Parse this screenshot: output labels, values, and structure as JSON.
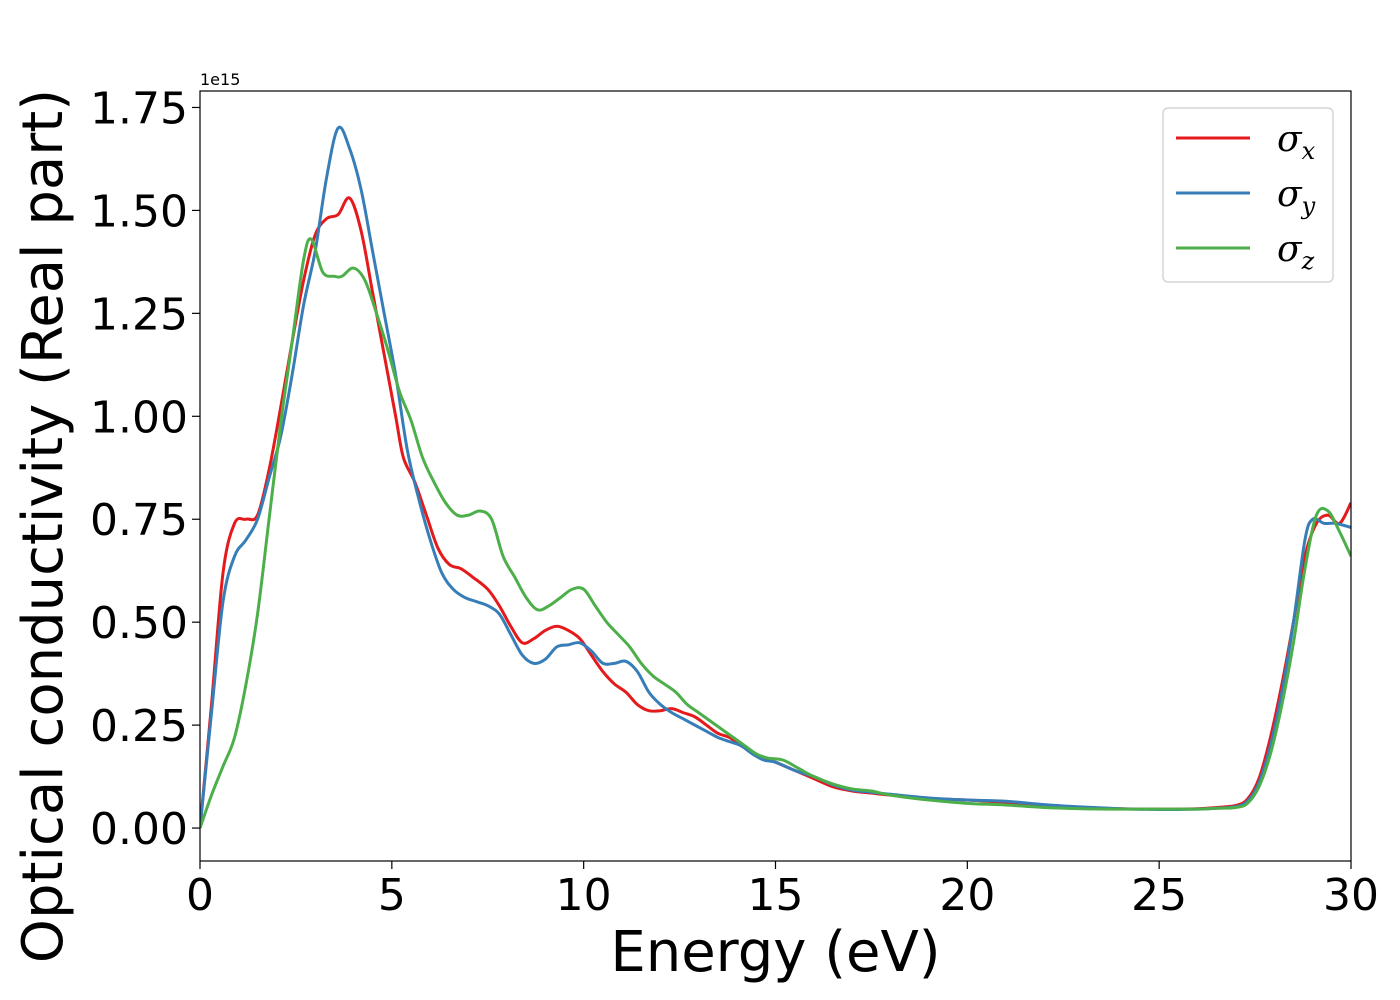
{
  "chart_data": {
    "type": "line",
    "xlabel": "Energy (eV)",
    "ylabel": "Optical conductivity (Real part)",
    "y_offset_label": "1e15",
    "xlim": [
      0,
      30
    ],
    "ylim": [
      -0.08,
      1.79
    ],
    "x_ticks": [
      0,
      5,
      10,
      15,
      20,
      25,
      30
    ],
    "x_tick_labels": [
      "0",
      "5",
      "10",
      "15",
      "20",
      "25",
      "30"
    ],
    "y_ticks": [
      0.0,
      0.25,
      0.5,
      0.75,
      1.0,
      1.25,
      1.5,
      1.75
    ],
    "y_tick_labels": [
      "0.00",
      "0.25",
      "0.50",
      "0.75",
      "1.00",
      "1.25",
      "1.50",
      "1.75"
    ],
    "grid": false,
    "legend_position": "top-right",
    "series": [
      {
        "name": "σx",
        "symbol": "σ",
        "subscript": "x",
        "color": "#e41a1c",
        "points": [
          [
            0,
            0
          ],
          [
            0.3,
            0.3
          ],
          [
            0.6,
            0.62
          ],
          [
            0.9,
            0.74
          ],
          [
            1.2,
            0.75
          ],
          [
            1.5,
            0.76
          ],
          [
            1.8,
            0.87
          ],
          [
            2.1,
            1.02
          ],
          [
            2.4,
            1.18
          ],
          [
            2.7,
            1.33
          ],
          [
            3.0,
            1.44
          ],
          [
            3.3,
            1.48
          ],
          [
            3.6,
            1.49
          ],
          [
            3.9,
            1.53
          ],
          [
            4.2,
            1.45
          ],
          [
            4.5,
            1.3
          ],
          [
            4.8,
            1.15
          ],
          [
            5.1,
            1.0
          ],
          [
            5.3,
            0.9
          ],
          [
            5.6,
            0.84
          ],
          [
            5.9,
            0.76
          ],
          [
            6.2,
            0.68
          ],
          [
            6.5,
            0.64
          ],
          [
            6.8,
            0.63
          ],
          [
            7.1,
            0.61
          ],
          [
            7.5,
            0.58
          ],
          [
            7.8,
            0.54
          ],
          [
            8.1,
            0.49
          ],
          [
            8.4,
            0.45
          ],
          [
            8.7,
            0.46
          ],
          [
            9.0,
            0.48
          ],
          [
            9.3,
            0.49
          ],
          [
            9.6,
            0.48
          ],
          [
            9.9,
            0.46
          ],
          [
            10.2,
            0.42
          ],
          [
            10.5,
            0.38
          ],
          [
            10.8,
            0.35
          ],
          [
            11.1,
            0.33
          ],
          [
            11.4,
            0.3
          ],
          [
            11.7,
            0.285
          ],
          [
            12.0,
            0.285
          ],
          [
            12.3,
            0.29
          ],
          [
            12.6,
            0.28
          ],
          [
            12.9,
            0.27
          ],
          [
            13.2,
            0.25
          ],
          [
            13.5,
            0.23
          ],
          [
            13.8,
            0.22
          ],
          [
            14.1,
            0.2
          ],
          [
            14.4,
            0.185
          ],
          [
            14.7,
            0.17
          ],
          [
            15.0,
            0.16
          ],
          [
            15.5,
            0.14
          ],
          [
            16.0,
            0.12
          ],
          [
            16.5,
            0.1
          ],
          [
            17.0,
            0.09
          ],
          [
            17.5,
            0.085
          ],
          [
            18.0,
            0.08
          ],
          [
            19.0,
            0.072
          ],
          [
            20.0,
            0.068
          ],
          [
            21.0,
            0.062
          ],
          [
            22.0,
            0.055
          ],
          [
            23.0,
            0.05
          ],
          [
            24.0,
            0.047
          ],
          [
            25.0,
            0.046
          ],
          [
            26.0,
            0.047
          ],
          [
            26.5,
            0.05
          ],
          [
            27.0,
            0.055
          ],
          [
            27.3,
            0.07
          ],
          [
            27.6,
            0.12
          ],
          [
            27.9,
            0.22
          ],
          [
            28.2,
            0.35
          ],
          [
            28.5,
            0.5
          ],
          [
            28.8,
            0.66
          ],
          [
            29.1,
            0.74
          ],
          [
            29.4,
            0.76
          ],
          [
            29.7,
            0.74
          ],
          [
            30.0,
            0.79
          ]
        ]
      },
      {
        "name": "σy",
        "symbol": "σ",
        "subscript": "y",
        "color": "#377eb8",
        "points": [
          [
            0,
            0
          ],
          [
            0.3,
            0.28
          ],
          [
            0.6,
            0.55
          ],
          [
            0.9,
            0.66
          ],
          [
            1.2,
            0.7
          ],
          [
            1.5,
            0.75
          ],
          [
            1.8,
            0.85
          ],
          [
            2.1,
            0.95
          ],
          [
            2.4,
            1.1
          ],
          [
            2.7,
            1.27
          ],
          [
            3.0,
            1.4
          ],
          [
            3.3,
            1.58
          ],
          [
            3.6,
            1.7
          ],
          [
            3.9,
            1.65
          ],
          [
            4.2,
            1.55
          ],
          [
            4.5,
            1.4
          ],
          [
            4.8,
            1.25
          ],
          [
            5.1,
            1.1
          ],
          [
            5.4,
            0.92
          ],
          [
            5.7,
            0.8
          ],
          [
            6.0,
            0.7
          ],
          [
            6.3,
            0.62
          ],
          [
            6.6,
            0.58
          ],
          [
            6.9,
            0.56
          ],
          [
            7.2,
            0.55
          ],
          [
            7.5,
            0.54
          ],
          [
            7.8,
            0.52
          ],
          [
            8.1,
            0.47
          ],
          [
            8.4,
            0.42
          ],
          [
            8.7,
            0.4
          ],
          [
            9.0,
            0.41
          ],
          [
            9.3,
            0.44
          ],
          [
            9.6,
            0.445
          ],
          [
            9.9,
            0.45
          ],
          [
            10.2,
            0.43
          ],
          [
            10.5,
            0.4
          ],
          [
            10.8,
            0.4
          ],
          [
            11.1,
            0.405
          ],
          [
            11.4,
            0.38
          ],
          [
            11.7,
            0.33
          ],
          [
            12.0,
            0.3
          ],
          [
            12.3,
            0.28
          ],
          [
            12.6,
            0.265
          ],
          [
            12.9,
            0.25
          ],
          [
            13.2,
            0.235
          ],
          [
            13.5,
            0.22
          ],
          [
            13.8,
            0.21
          ],
          [
            14.1,
            0.2
          ],
          [
            14.4,
            0.18
          ],
          [
            14.7,
            0.165
          ],
          [
            15.0,
            0.16
          ],
          [
            15.5,
            0.14
          ],
          [
            16.0,
            0.125
          ],
          [
            16.5,
            0.105
          ],
          [
            17.0,
            0.092
          ],
          [
            17.5,
            0.087
          ],
          [
            18.0,
            0.082
          ],
          [
            19.0,
            0.073
          ],
          [
            20.0,
            0.068
          ],
          [
            21.0,
            0.065
          ],
          [
            22.0,
            0.057
          ],
          [
            23.0,
            0.051
          ],
          [
            24.0,
            0.047
          ],
          [
            25.0,
            0.045
          ],
          [
            26.0,
            0.046
          ],
          [
            26.5,
            0.048
          ],
          [
            27.0,
            0.052
          ],
          [
            27.3,
            0.065
          ],
          [
            27.6,
            0.11
          ],
          [
            27.9,
            0.2
          ],
          [
            28.2,
            0.33
          ],
          [
            28.5,
            0.5
          ],
          [
            28.8,
            0.7
          ],
          [
            29.0,
            0.75
          ],
          [
            29.3,
            0.74
          ],
          [
            29.6,
            0.74
          ],
          [
            30.0,
            0.73
          ]
        ]
      },
      {
        "name": "σz",
        "symbol": "σ",
        "subscript": "z",
        "color": "#4daf4a",
        "points": [
          [
            0,
            0
          ],
          [
            0.3,
            0.08
          ],
          [
            0.6,
            0.15
          ],
          [
            0.9,
            0.22
          ],
          [
            1.2,
            0.35
          ],
          [
            1.5,
            0.52
          ],
          [
            1.8,
            0.75
          ],
          [
            2.1,
            0.98
          ],
          [
            2.4,
            1.18
          ],
          [
            2.7,
            1.38
          ],
          [
            2.9,
            1.43
          ],
          [
            3.2,
            1.35
          ],
          [
            3.5,
            1.34
          ],
          [
            3.7,
            1.34
          ],
          [
            4.0,
            1.36
          ],
          [
            4.3,
            1.33
          ],
          [
            4.6,
            1.25
          ],
          [
            4.9,
            1.16
          ],
          [
            5.2,
            1.06
          ],
          [
            5.5,
            0.99
          ],
          [
            5.8,
            0.9
          ],
          [
            6.1,
            0.84
          ],
          [
            6.4,
            0.79
          ],
          [
            6.7,
            0.76
          ],
          [
            7.0,
            0.76
          ],
          [
            7.3,
            0.77
          ],
          [
            7.6,
            0.75
          ],
          [
            7.9,
            0.66
          ],
          [
            8.2,
            0.61
          ],
          [
            8.5,
            0.56
          ],
          [
            8.8,
            0.53
          ],
          [
            9.1,
            0.54
          ],
          [
            9.4,
            0.56
          ],
          [
            9.7,
            0.58
          ],
          [
            10.0,
            0.58
          ],
          [
            10.3,
            0.54
          ],
          [
            10.6,
            0.5
          ],
          [
            10.9,
            0.47
          ],
          [
            11.2,
            0.44
          ],
          [
            11.5,
            0.4
          ],
          [
            11.8,
            0.37
          ],
          [
            12.1,
            0.35
          ],
          [
            12.4,
            0.33
          ],
          [
            12.7,
            0.3
          ],
          [
            13.0,
            0.28
          ],
          [
            13.3,
            0.26
          ],
          [
            13.6,
            0.24
          ],
          [
            13.9,
            0.22
          ],
          [
            14.2,
            0.2
          ],
          [
            14.5,
            0.18
          ],
          [
            14.8,
            0.17
          ],
          [
            15.2,
            0.165
          ],
          [
            15.6,
            0.145
          ],
          [
            16.0,
            0.125
          ],
          [
            16.5,
            0.107
          ],
          [
            17.0,
            0.095
          ],
          [
            17.5,
            0.09
          ],
          [
            18.0,
            0.08
          ],
          [
            19.0,
            0.068
          ],
          [
            20.0,
            0.06
          ],
          [
            21.0,
            0.056
          ],
          [
            22.0,
            0.05
          ],
          [
            23.0,
            0.047
          ],
          [
            24.0,
            0.046
          ],
          [
            25.0,
            0.046
          ],
          [
            26.0,
            0.046
          ],
          [
            26.5,
            0.048
          ],
          [
            27.0,
            0.05
          ],
          [
            27.3,
            0.06
          ],
          [
            27.6,
            0.1
          ],
          [
            27.9,
            0.18
          ],
          [
            28.2,
            0.3
          ],
          [
            28.5,
            0.45
          ],
          [
            28.8,
            0.63
          ],
          [
            29.1,
            0.76
          ],
          [
            29.4,
            0.77
          ],
          [
            29.7,
            0.72
          ],
          [
            30.0,
            0.66
          ]
        ]
      }
    ]
  }
}
